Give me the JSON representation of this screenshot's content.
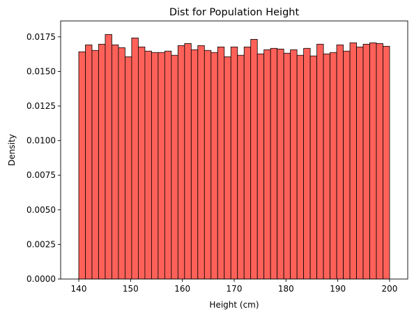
{
  "chart_data": {
    "type": "bar",
    "title": "Dist for Population Height",
    "xlabel": "Height (cm)",
    "ylabel": "Density",
    "xlim": [
      136.5,
      203.5
    ],
    "ylim": [
      0,
      0.01865
    ],
    "bin_start": 140,
    "bin_end": 200,
    "x_ticks": [
      140,
      150,
      160,
      170,
      180,
      190,
      200
    ],
    "y_ticks": [
      0.0,
      0.0025,
      0.005,
      0.0075,
      0.01,
      0.0125,
      0.015,
      0.0175
    ],
    "x_tick_labels": [
      "140",
      "150",
      "160",
      "170",
      "180",
      "190",
      "200"
    ],
    "y_tick_labels": [
      "0.0000",
      "0.0025",
      "0.0050",
      "0.0075",
      "0.0100",
      "0.0125",
      "0.0150",
      "0.0175"
    ],
    "values": [
      0.01642,
      0.01692,
      0.01652,
      0.01697,
      0.01767,
      0.01692,
      0.01672,
      0.01606,
      0.01742,
      0.01677,
      0.01647,
      0.01637,
      0.01637,
      0.01647,
      0.01617,
      0.01687,
      0.01702,
      0.01657,
      0.01687,
      0.01652,
      0.01637,
      0.01677,
      0.01606,
      0.01677,
      0.01617,
      0.01677,
      0.01732,
      0.01627,
      0.01657,
      0.01667,
      0.01662,
      0.01632,
      0.01657,
      0.01617,
      0.01667,
      0.01612,
      0.01697,
      0.01627,
      0.01637,
      0.01692,
      0.01647,
      0.01707,
      0.01677,
      0.01697,
      0.01707,
      0.01702,
      0.01682
    ],
    "colors": {
      "bar_fill": "#FF6159",
      "bar_edge": "#000000",
      "axis": "#000000"
    },
    "grid": false
  }
}
